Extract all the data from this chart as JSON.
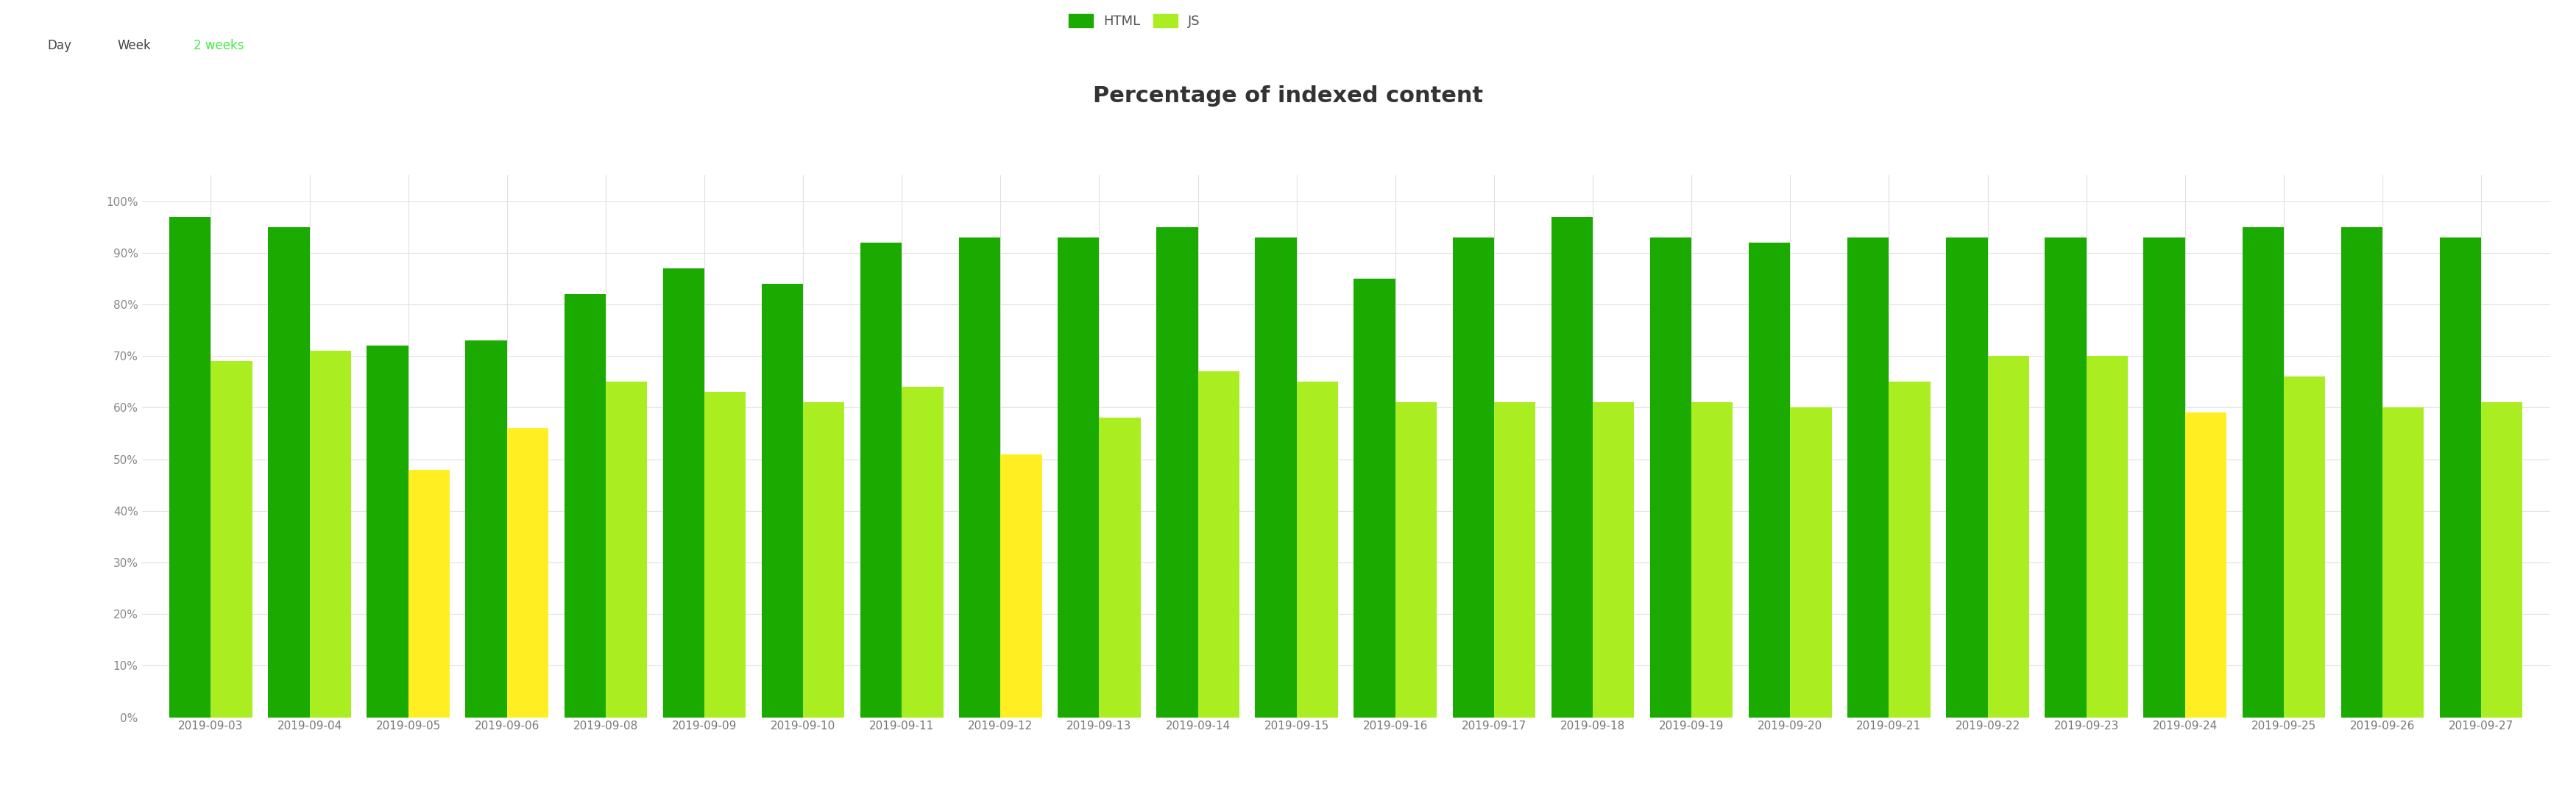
{
  "title": "Percentage of indexed content",
  "categories": [
    "2019-09-03",
    "2019-09-04",
    "2019-09-05",
    "2019-09-06",
    "2019-09-08",
    "2019-09-09",
    "2019-09-10",
    "2019-09-11",
    "2019-09-12",
    "2019-09-13",
    "2019-09-14",
    "2019-09-15",
    "2019-09-16",
    "2019-09-17",
    "2019-09-18",
    "2019-09-19",
    "2019-09-20",
    "2019-09-21",
    "2019-09-22",
    "2019-09-23",
    "2019-09-24",
    "2019-09-25",
    "2019-09-26",
    "2019-09-27"
  ],
  "html_values": [
    97,
    95,
    72,
    73,
    82,
    87,
    84,
    92,
    93,
    93,
    95,
    93,
    85,
    93,
    97,
    93,
    92,
    93,
    93,
    93,
    93,
    95,
    95,
    93
  ],
  "js_values": [
    69,
    71,
    48,
    56,
    65,
    63,
    61,
    64,
    51,
    58,
    67,
    65,
    61,
    61,
    61,
    61,
    60,
    65,
    70,
    70,
    59,
    66,
    60,
    61
  ],
  "js_colors": [
    "#aaee22",
    "#aaee22",
    "#ffee22",
    "#ffee22",
    "#aaee22",
    "#aaee22",
    "#aaee22",
    "#aaee22",
    "#ffee22",
    "#aaee22",
    "#aaee22",
    "#aaee22",
    "#aaee22",
    "#aaee22",
    "#aaee22",
    "#aaee22",
    "#aaee22",
    "#aaee22",
    "#aaee22",
    "#aaee22",
    "#ffee22",
    "#aaee22",
    "#aaee22",
    "#aaee22"
  ],
  "html_color": "#1aaa00",
  "js_color_normal": "#aaee22",
  "js_color_low": "#ffee22",
  "bar_width": 0.42,
  "background_color": "#ffffff",
  "grid_color": "#e0e0e0",
  "title_fontsize": 22,
  "tick_fontsize": 11,
  "legend_fontsize": 13,
  "ylim": [
    0,
    105
  ],
  "yticks": [
    0,
    10,
    20,
    30,
    40,
    50,
    60,
    70,
    80,
    90,
    100
  ],
  "ytick_labels": [
    "0%",
    "10%",
    "20%",
    "30%",
    "40%",
    "50%",
    "60%",
    "70%",
    "80%",
    "90%",
    "100%"
  ],
  "legend_html": "HTML",
  "legend_js": "JS",
  "tab_labels": [
    "Day",
    "Week",
    "2 weeks"
  ],
  "tab_active": "2 weeks",
  "tab_active_color": "#44ee44",
  "tab_inactive_color": "#444444"
}
